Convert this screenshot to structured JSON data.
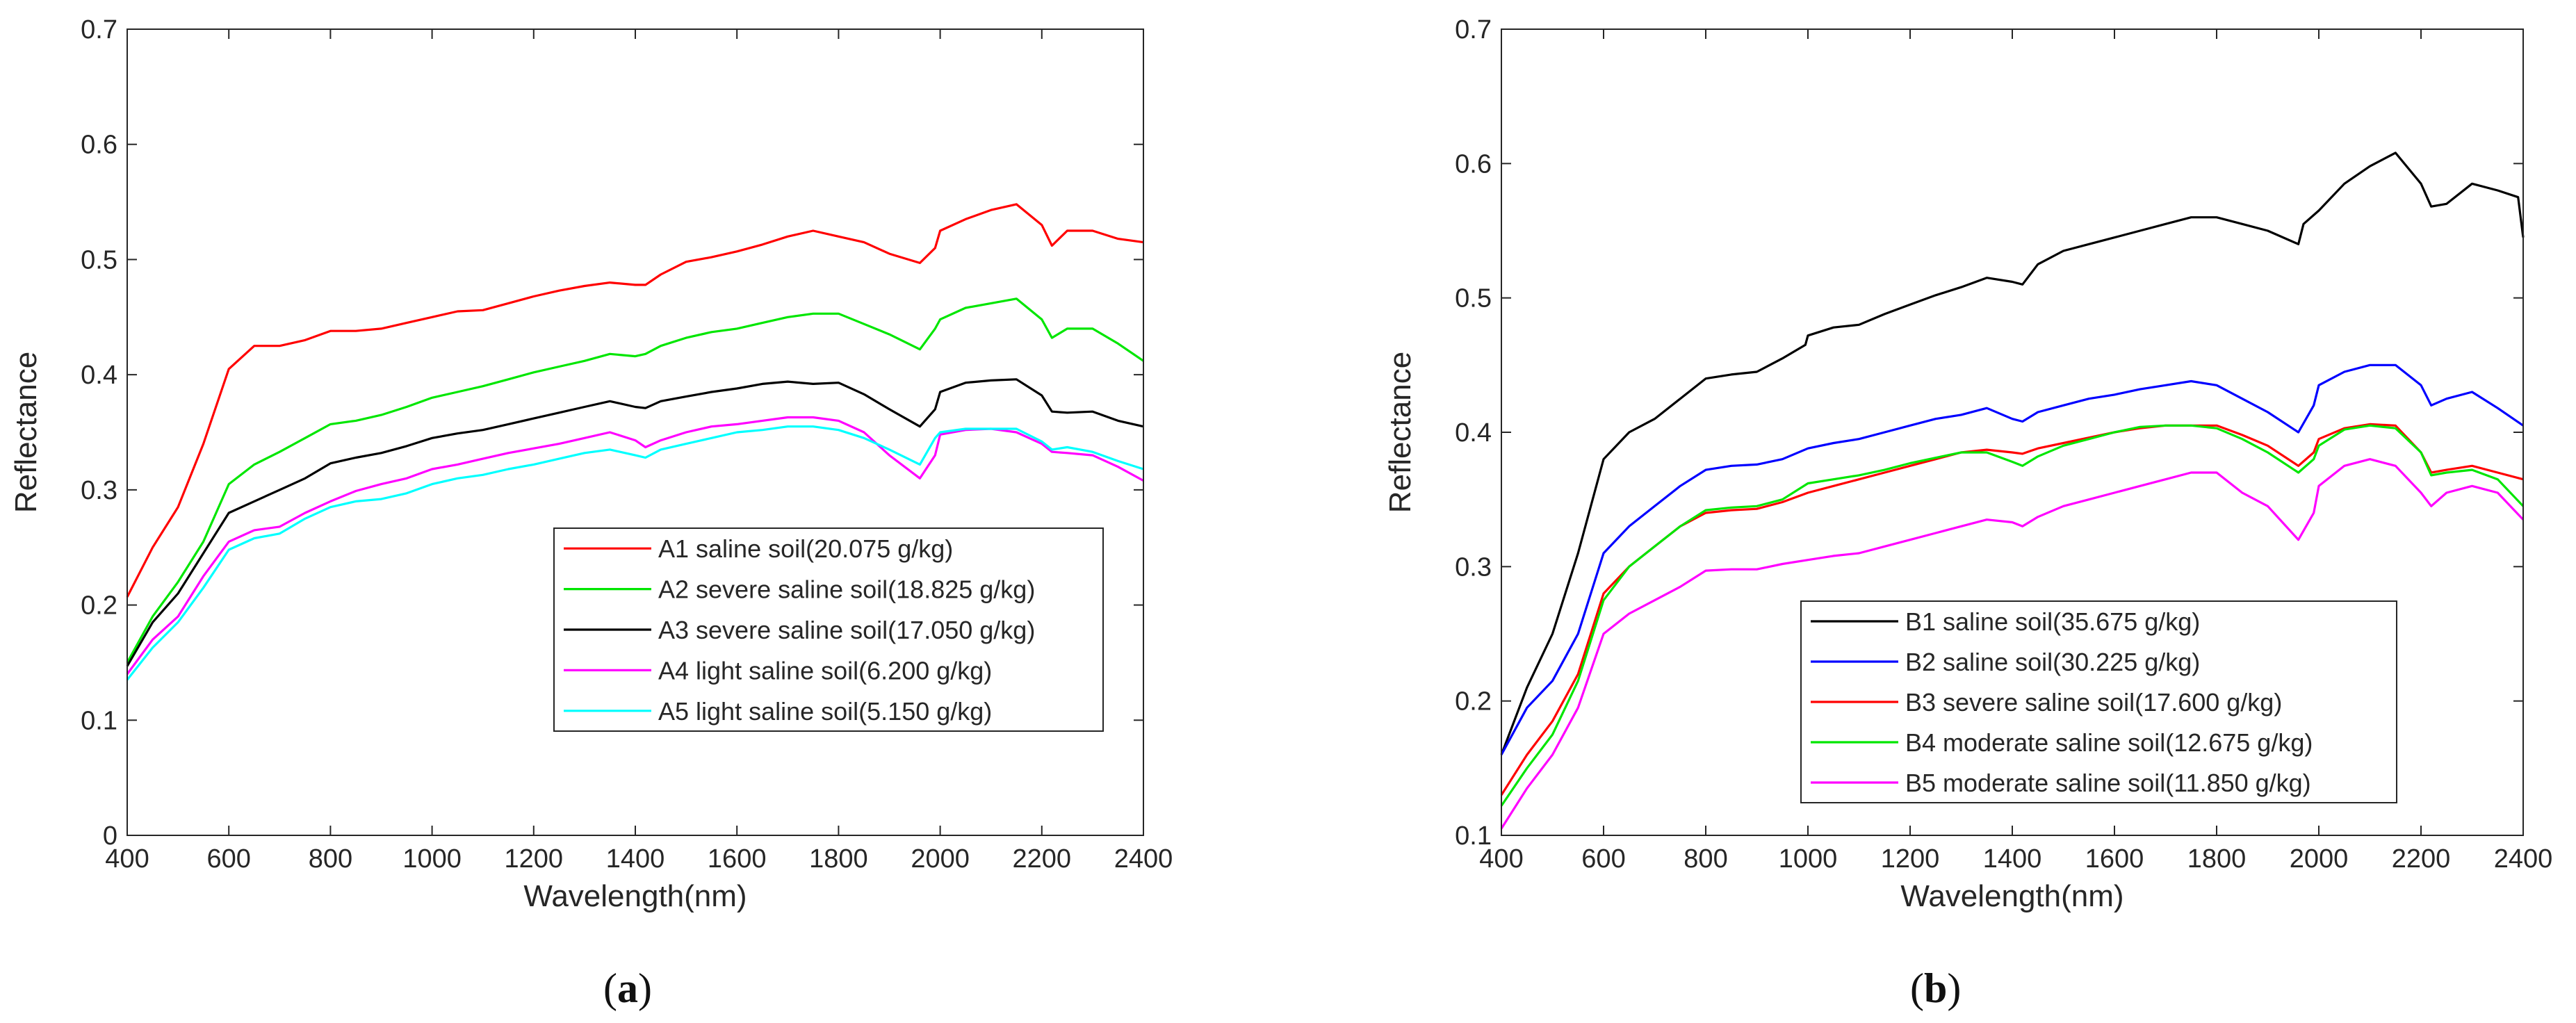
{
  "chart_data": [
    {
      "type": "line",
      "panel_label": "a",
      "xlabel": "Wavelength(nm)",
      "ylabel": "Reflectance",
      "xlim": [
        400,
        2400
      ],
      "ylim": [
        0,
        0.7
      ],
      "xticks": [
        400,
        600,
        800,
        1000,
        1200,
        1400,
        1600,
        1800,
        2000,
        2200,
        2400
      ],
      "yticks": [
        0,
        0.1,
        0.2,
        0.3,
        0.4,
        0.5,
        0.6,
        0.7
      ],
      "ytick_labels": [
        "0",
        "0.1",
        "0.2",
        "0.3",
        "0.4",
        "0.5",
        "0.6",
        "0.7"
      ],
      "legend_position": "center-right",
      "series": [
        {
          "name": "A1 saline soil(20.075 g/kg)",
          "color": "#ff0000",
          "x": [
            400,
            450,
            500,
            550,
            600,
            650,
            700,
            750,
            800,
            850,
            900,
            950,
            1000,
            1050,
            1100,
            1150,
            1200,
            1250,
            1300,
            1350,
            1400,
            1420,
            1450,
            1500,
            1550,
            1600,
            1650,
            1700,
            1750,
            1800,
            1850,
            1900,
            1960,
            1990,
            2000,
            2050,
            2100,
            2150,
            2200,
            2220,
            2250,
            2300,
            2350,
            2400
          ],
          "y": [
            0.207,
            0.25,
            0.285,
            0.34,
            0.405,
            0.425,
            0.425,
            0.43,
            0.438,
            0.438,
            0.44,
            0.445,
            0.45,
            0.455,
            0.456,
            0.462,
            0.468,
            0.473,
            0.477,
            0.48,
            0.478,
            0.478,
            0.487,
            0.498,
            0.502,
            0.507,
            0.513,
            0.52,
            0.525,
            0.52,
            0.515,
            0.505,
            0.497,
            0.51,
            0.525,
            0.535,
            0.543,
            0.548,
            0.53,
            0.512,
            0.525,
            0.525,
            0.518,
            0.515
          ]
        },
        {
          "name": "A2 severe saline soil(18.825 g/kg)",
          "color": "#00e600",
          "x": [
            400,
            450,
            500,
            550,
            600,
            650,
            700,
            750,
            800,
            850,
            900,
            950,
            1000,
            1050,
            1100,
            1150,
            1200,
            1250,
            1300,
            1350,
            1400,
            1420,
            1450,
            1500,
            1550,
            1600,
            1650,
            1700,
            1750,
            1800,
            1850,
            1900,
            1960,
            1990,
            2000,
            2050,
            2100,
            2150,
            2200,
            2220,
            2250,
            2300,
            2350,
            2400
          ],
          "y": [
            0.15,
            0.19,
            0.22,
            0.255,
            0.305,
            0.322,
            0.333,
            0.345,
            0.357,
            0.36,
            0.365,
            0.372,
            0.38,
            0.385,
            0.39,
            0.396,
            0.402,
            0.407,
            0.412,
            0.418,
            0.416,
            0.418,
            0.425,
            0.432,
            0.437,
            0.44,
            0.445,
            0.45,
            0.453,
            0.453,
            0.444,
            0.435,
            0.422,
            0.44,
            0.448,
            0.458,
            0.462,
            0.466,
            0.448,
            0.432,
            0.44,
            0.44,
            0.427,
            0.412
          ]
        },
        {
          "name": "A3 severe saline soil(17.050 g/kg)",
          "color": "#000000",
          "x": [
            400,
            450,
            500,
            550,
            600,
            650,
            700,
            750,
            800,
            850,
            900,
            950,
            1000,
            1050,
            1100,
            1150,
            1200,
            1250,
            1300,
            1350,
            1400,
            1420,
            1450,
            1500,
            1550,
            1600,
            1650,
            1700,
            1750,
            1800,
            1850,
            1900,
            1960,
            1990,
            2000,
            2050,
            2100,
            2150,
            2200,
            2220,
            2250,
            2300,
            2350,
            2400
          ],
          "y": [
            0.147,
            0.185,
            0.21,
            0.245,
            0.28,
            0.29,
            0.3,
            0.31,
            0.323,
            0.328,
            0.332,
            0.338,
            0.345,
            0.349,
            0.352,
            0.357,
            0.362,
            0.367,
            0.372,
            0.377,
            0.372,
            0.371,
            0.377,
            0.381,
            0.385,
            0.388,
            0.392,
            0.394,
            0.392,
            0.393,
            0.383,
            0.37,
            0.355,
            0.37,
            0.385,
            0.393,
            0.395,
            0.396,
            0.382,
            0.368,
            0.367,
            0.368,
            0.36,
            0.355
          ]
        },
        {
          "name": "A4 light saline soil(6.200 g/kg)",
          "color": "#ff00ff",
          "x": [
            400,
            450,
            500,
            550,
            600,
            650,
            700,
            750,
            800,
            850,
            900,
            950,
            1000,
            1050,
            1100,
            1150,
            1200,
            1250,
            1300,
            1350,
            1400,
            1420,
            1450,
            1500,
            1550,
            1600,
            1650,
            1700,
            1750,
            1800,
            1850,
            1900,
            1960,
            1990,
            2000,
            2050,
            2100,
            2150,
            2200,
            2220,
            2250,
            2300,
            2350,
            2400
          ],
          "y": [
            0.14,
            0.17,
            0.19,
            0.225,
            0.255,
            0.265,
            0.268,
            0.28,
            0.29,
            0.299,
            0.305,
            0.31,
            0.318,
            0.322,
            0.327,
            0.332,
            0.336,
            0.34,
            0.345,
            0.35,
            0.343,
            0.337,
            0.343,
            0.35,
            0.355,
            0.357,
            0.36,
            0.363,
            0.363,
            0.36,
            0.35,
            0.33,
            0.31,
            0.33,
            0.348,
            0.352,
            0.353,
            0.35,
            0.34,
            0.333,
            0.332,
            0.33,
            0.32,
            0.308
          ]
        },
        {
          "name": "A5 light saline soil(5.150 g/kg)",
          "color": "#00ffff",
          "x": [
            400,
            450,
            500,
            550,
            600,
            650,
            700,
            750,
            800,
            850,
            900,
            950,
            1000,
            1050,
            1100,
            1150,
            1200,
            1250,
            1300,
            1350,
            1400,
            1420,
            1450,
            1500,
            1550,
            1600,
            1650,
            1700,
            1750,
            1800,
            1850,
            1900,
            1960,
            1990,
            2000,
            2050,
            2100,
            2150,
            2200,
            2220,
            2250,
            2300,
            2350,
            2400
          ],
          "y": [
            0.135,
            0.163,
            0.185,
            0.215,
            0.248,
            0.258,
            0.262,
            0.275,
            0.285,
            0.29,
            0.292,
            0.297,
            0.305,
            0.31,
            0.313,
            0.318,
            0.322,
            0.327,
            0.332,
            0.335,
            0.33,
            0.328,
            0.335,
            0.34,
            0.345,
            0.35,
            0.352,
            0.355,
            0.355,
            0.352,
            0.345,
            0.335,
            0.322,
            0.345,
            0.35,
            0.353,
            0.353,
            0.353,
            0.342,
            0.335,
            0.337,
            0.333,
            0.325,
            0.318
          ]
        }
      ]
    },
    {
      "type": "line",
      "panel_label": "b",
      "xlabel": "Wavelength(nm)",
      "ylabel": "Reflectance",
      "xlim": [
        400,
        2400
      ],
      "ylim": [
        0.1,
        0.7
      ],
      "xticks": [
        400,
        600,
        800,
        1000,
        1200,
        1400,
        1600,
        1800,
        2000,
        2200,
        2400
      ],
      "yticks": [
        0.1,
        0.2,
        0.3,
        0.4,
        0.5,
        0.6,
        0.7
      ],
      "ytick_labels": [
        "0.1",
        "0.2",
        "0.3",
        "0.4",
        "0.5",
        "0.6",
        "0.7"
      ],
      "legend_position": "bottom-center",
      "series": [
        {
          "name": "B1 saline soil(35.675 g/kg)",
          "color": "#000000",
          "x": [
            400,
            450,
            500,
            550,
            600,
            650,
            700,
            750,
            800,
            850,
            900,
            950,
            995,
            1000,
            1050,
            1100,
            1150,
            1200,
            1250,
            1300,
            1350,
            1400,
            1420,
            1450,
            1500,
            1550,
            1600,
            1650,
            1700,
            1750,
            1800,
            1850,
            1900,
            1960,
            1970,
            2000,
            2050,
            2100,
            2150,
            2200,
            2220,
            2250,
            2300,
            2350,
            2390,
            2400
          ],
          "y": [
            0.16,
            0.21,
            0.25,
            0.31,
            0.38,
            0.4,
            0.41,
            0.425,
            0.44,
            0.443,
            0.445,
            0.455,
            0.465,
            0.472,
            0.478,
            0.48,
            0.488,
            0.495,
            0.502,
            0.508,
            0.515,
            0.512,
            0.51,
            0.525,
            0.535,
            0.54,
            0.545,
            0.55,
            0.555,
            0.56,
            0.56,
            0.555,
            0.55,
            0.54,
            0.555,
            0.565,
            0.585,
            0.598,
            0.608,
            0.585,
            0.568,
            0.57,
            0.585,
            0.58,
            0.575,
            0.545
          ]
        },
        {
          "name": "B2 saline soil(30.225 g/kg)",
          "color": "#0000ff",
          "x": [
            400,
            450,
            500,
            550,
            600,
            650,
            700,
            750,
            800,
            850,
            900,
            950,
            1000,
            1050,
            1100,
            1150,
            1200,
            1250,
            1300,
            1350,
            1400,
            1420,
            1450,
            1500,
            1550,
            1600,
            1650,
            1700,
            1750,
            1800,
            1850,
            1900,
            1960,
            1990,
            2000,
            2050,
            2100,
            2150,
            2200,
            2220,
            2250,
            2300,
            2350,
            2400
          ],
          "y": [
            0.16,
            0.195,
            0.215,
            0.25,
            0.31,
            0.33,
            0.345,
            0.36,
            0.372,
            0.375,
            0.376,
            0.38,
            0.388,
            0.392,
            0.395,
            0.4,
            0.405,
            0.41,
            0.413,
            0.418,
            0.41,
            0.408,
            0.415,
            0.42,
            0.425,
            0.428,
            0.432,
            0.435,
            0.438,
            0.435,
            0.425,
            0.415,
            0.4,
            0.42,
            0.435,
            0.445,
            0.45,
            0.45,
            0.435,
            0.42,
            0.425,
            0.43,
            0.418,
            0.405
          ]
        },
        {
          "name": "B3 severe saline soil(17.600 g/kg)",
          "color": "#ff0000",
          "x": [
            400,
            450,
            500,
            550,
            600,
            650,
            700,
            750,
            800,
            850,
            900,
            950,
            1000,
            1050,
            1100,
            1150,
            1200,
            1250,
            1300,
            1350,
            1400,
            1420,
            1450,
            1500,
            1550,
            1600,
            1650,
            1700,
            1750,
            1800,
            1850,
            1900,
            1960,
            1990,
            2000,
            2050,
            2100,
            2150,
            2200,
            2220,
            2250,
            2300,
            2350,
            2400
          ],
          "y": [
            0.13,
            0.16,
            0.185,
            0.22,
            0.28,
            0.3,
            0.315,
            0.33,
            0.34,
            0.342,
            0.343,
            0.348,
            0.355,
            0.36,
            0.365,
            0.37,
            0.375,
            0.38,
            0.385,
            0.387,
            0.385,
            0.384,
            0.388,
            0.392,
            0.396,
            0.4,
            0.403,
            0.405,
            0.405,
            0.405,
            0.398,
            0.39,
            0.375,
            0.385,
            0.395,
            0.403,
            0.406,
            0.405,
            0.385,
            0.37,
            0.372,
            0.375,
            0.37,
            0.365
          ]
        },
        {
          "name": "B4 moderate saline soil(12.675 g/kg)",
          "color": "#00e600",
          "x": [
            400,
            450,
            500,
            550,
            600,
            650,
            700,
            750,
            800,
            850,
            900,
            950,
            1000,
            1050,
            1100,
            1150,
            1200,
            1250,
            1300,
            1350,
            1400,
            1420,
            1450,
            1500,
            1550,
            1600,
            1650,
            1700,
            1750,
            1800,
            1850,
            1900,
            1960,
            1990,
            2000,
            2050,
            2100,
            2150,
            2200,
            2220,
            2250,
            2300,
            2350,
            2400
          ],
          "y": [
            0.122,
            0.15,
            0.175,
            0.215,
            0.275,
            0.3,
            0.315,
            0.33,
            0.342,
            0.344,
            0.345,
            0.35,
            0.362,
            0.365,
            0.368,
            0.372,
            0.377,
            0.381,
            0.385,
            0.385,
            0.378,
            0.375,
            0.382,
            0.39,
            0.395,
            0.4,
            0.404,
            0.405,
            0.405,
            0.403,
            0.395,
            0.385,
            0.37,
            0.38,
            0.39,
            0.402,
            0.405,
            0.403,
            0.385,
            0.368,
            0.37,
            0.372,
            0.365,
            0.345
          ]
        },
        {
          "name": "B5 moderate saline soil(11.850 g/kg)",
          "color": "#ff00ff",
          "x": [
            400,
            450,
            500,
            550,
            600,
            650,
            700,
            750,
            800,
            850,
            900,
            950,
            1000,
            1050,
            1100,
            1150,
            1200,
            1250,
            1300,
            1350,
            1400,
            1420,
            1450,
            1500,
            1550,
            1600,
            1650,
            1700,
            1750,
            1800,
            1850,
            1900,
            1960,
            1990,
            2000,
            2050,
            2100,
            2150,
            2200,
            2220,
            2250,
            2300,
            2350,
            2400
          ],
          "y": [
            0.105,
            0.135,
            0.16,
            0.195,
            0.25,
            0.265,
            0.275,
            0.285,
            0.297,
            0.298,
            0.298,
            0.302,
            0.305,
            0.308,
            0.31,
            0.315,
            0.32,
            0.325,
            0.33,
            0.335,
            0.333,
            0.33,
            0.337,
            0.345,
            0.35,
            0.355,
            0.36,
            0.365,
            0.37,
            0.37,
            0.355,
            0.345,
            0.32,
            0.34,
            0.36,
            0.375,
            0.38,
            0.375,
            0.355,
            0.345,
            0.355,
            0.36,
            0.355,
            0.335
          ]
        }
      ]
    }
  ]
}
